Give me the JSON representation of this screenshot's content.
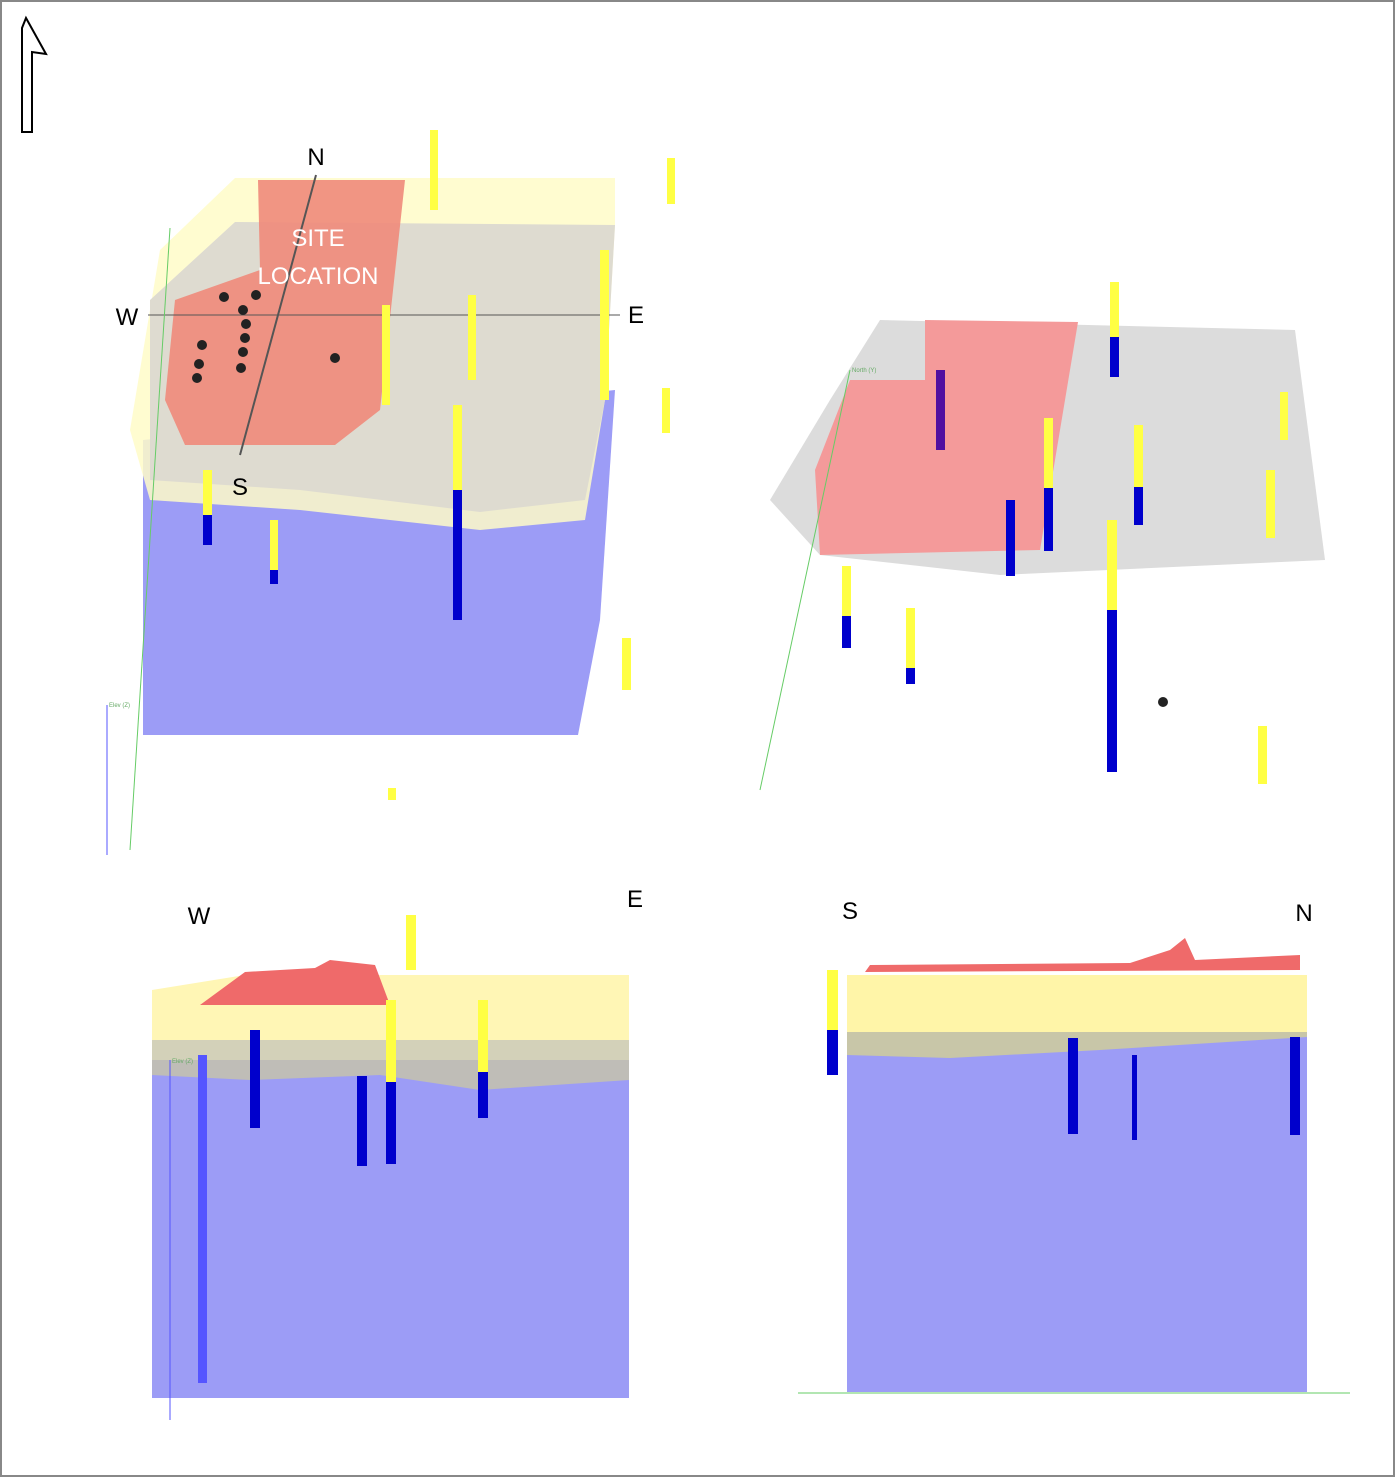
{
  "panels": [
    {
      "view": "plan-perspective",
      "north": "N",
      "south": "S",
      "west": "W",
      "east": "E",
      "site": [
        "SITE",
        "LOCATION"
      ],
      "axis": "Elev (Z)"
    },
    {
      "view": "oblique",
      "axis": "North (Y)"
    },
    {
      "view": "west-east section",
      "west": "W",
      "east": "E",
      "axis": "Elev (Z)"
    },
    {
      "view": "south-north section",
      "south": "S",
      "north": "N"
    }
  ]
}
